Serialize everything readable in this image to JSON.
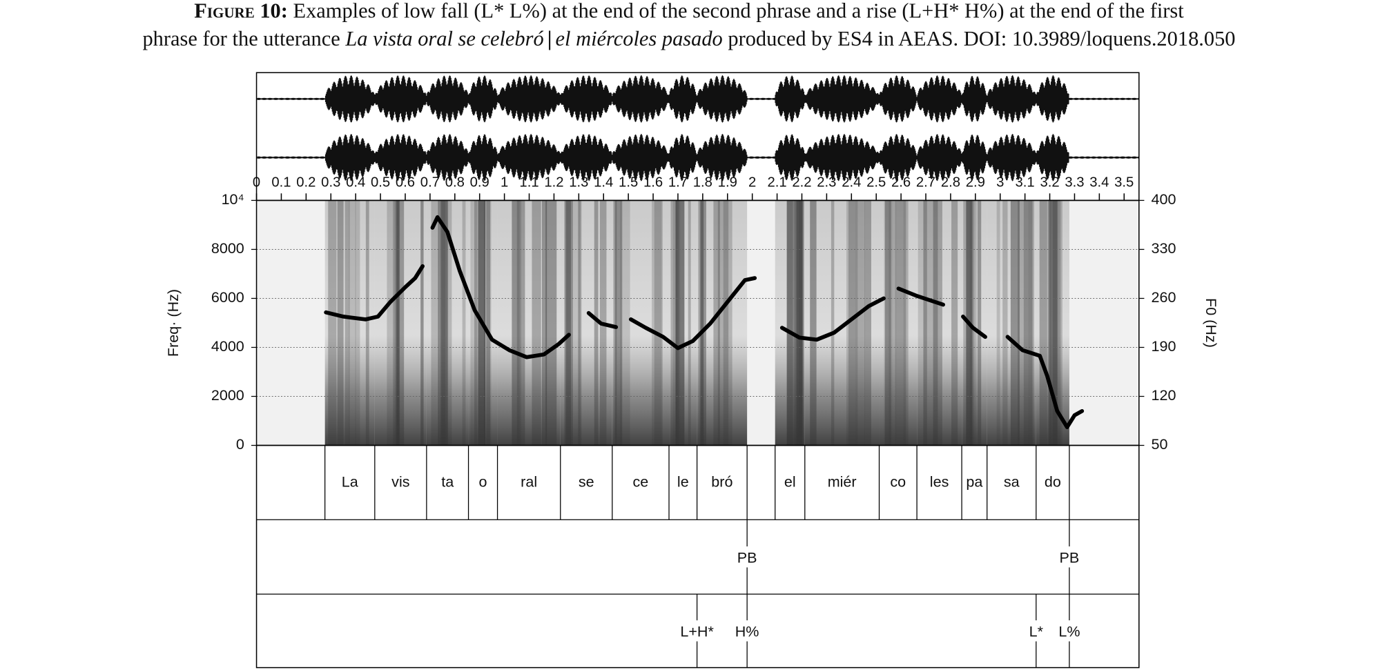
{
  "chart_data": {
    "type": "line",
    "title_parts": [
      {
        "text": "Figure 10:",
        "style": "bold-smallcaps"
      },
      {
        "text": " Examples of low fall (L* L%) at the end of the second phrase and a rise (L+H* H%) at the end of the first",
        "style": "normal"
      },
      {
        "text": "phrase for the utterance ",
        "style": "normal"
      },
      {
        "text": "La vista oral se celebró",
        "style": "italic"
      },
      {
        "text": "|",
        "style": "normal"
      },
      {
        "text": "el miércoles pasado",
        "style": "italic"
      },
      {
        "text": " produced by ES4 in AEAS. DOI: 10.3989/loquens.2018.050",
        "style": "normal"
      }
    ],
    "xlim": [
      0,
      3.56
    ],
    "xticks": [
      0,
      0.1,
      0.2,
      0.3,
      0.4,
      0.5,
      0.6,
      0.7,
      0.8,
      0.9,
      1,
      1.1,
      1.2,
      1.3,
      1.4,
      1.5,
      1.6,
      1.7,
      1.8,
      1.9,
      2,
      2.1,
      2.2,
      2.3,
      2.4,
      2.5,
      2.6,
      2.7,
      2.8,
      2.9,
      3,
      3.1,
      3.2,
      3.3,
      3.4,
      3.5
    ],
    "ylim": [
      0,
      10000
    ],
    "yticks": [
      0,
      2000,
      4000,
      6000,
      8000,
      {
        "value": 10000,
        "label": "10⁴"
      }
    ],
    "y_label": "Freq· (Hz)",
    "y2lim": [
      50,
      400
    ],
    "y2ticks": [
      50,
      120,
      190,
      260,
      330,
      400
    ],
    "y2_label": "F0 (Hz)",
    "grid": true,
    "series": [
      {
        "axis": "y2",
        "color": "#000000",
        "x": [
          0.28,
          0.35,
          0.44,
          0.49,
          0.54,
          0.6,
          0.64,
          0.67,
          null,
          0.71,
          0.73,
          0.77,
          0.82,
          0.88,
          0.95,
          1.02,
          1.09,
          1.16,
          1.22,
          1.26,
          null,
          1.34,
          1.39,
          1.45,
          null,
          1.51,
          1.57,
          1.64,
          1.7,
          1.76,
          1.83,
          1.9,
          1.97,
          2.01,
          null,
          2.12,
          2.19,
          2.26,
          2.33,
          2.4,
          2.47,
          2.53,
          null,
          2.59,
          2.66,
          2.77,
          null,
          2.85,
          2.89,
          2.94,
          null,
          3.03,
          3.09,
          3.16,
          3.19,
          3.23,
          3.27,
          3.3,
          3.33
        ],
        "values": [
          240,
          234,
          230,
          234,
          255,
          276,
          289,
          306,
          null,
          361,
          376,
          355,
          299,
          243,
          201,
          186,
          176,
          180,
          195,
          208,
          null,
          239,
          224,
          219,
          null,
          230,
          218,
          205,
          189,
          199,
          224,
          255,
          286,
          289,
          null,
          218,
          204,
          201,
          211,
          230,
          249,
          260,
          null,
          274,
          264,
          251,
          null,
          234,
          218,
          205,
          null,
          205,
          186,
          178,
          149,
          99,
          76,
          93,
          99
        ]
      }
    ],
    "tiers": [
      {
        "boundaries": [
          0.276,
          0.477,
          0.686,
          0.855,
          0.972,
          1.226,
          1.435,
          1.664,
          1.777,
          1.979,
          2.092,
          2.212,
          2.512,
          2.664,
          2.845,
          2.947,
          3.145,
          3.279
        ],
        "labels": [
          "La",
          "vis",
          "ta",
          "o",
          "ral",
          "se",
          "ce",
          "le",
          "bró",
          null,
          "el",
          "miér",
          "co",
          "les",
          "pa",
          "sa",
          "do"
        ]
      },
      {
        "times": [
          1.979,
          3.279
        ],
        "labels": [
          "PB",
          "PB"
        ]
      },
      {
        "times": [
          1.777,
          1.979,
          3.145,
          3.279
        ],
        "labels": [
          "L+H*",
          "H%",
          "L*",
          "L%"
        ]
      }
    ]
  }
}
